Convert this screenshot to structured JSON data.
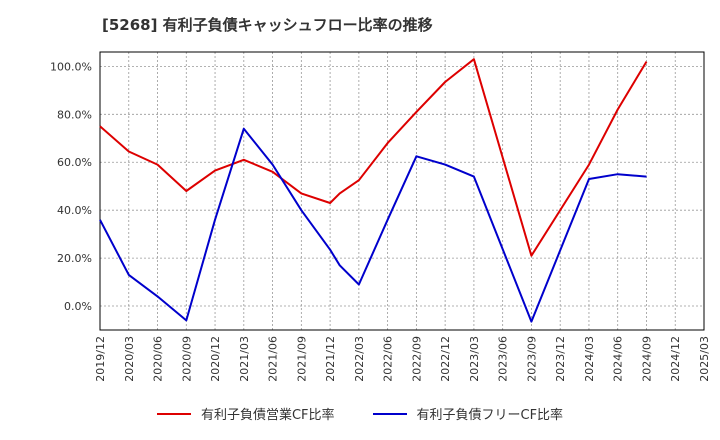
{
  "title": "[5268]  有利子負債キャッシュフロー比率の推移",
  "colors": {
    "series_0": "#dd0000",
    "series_1": "#0000cc",
    "grid": "#999999",
    "axis": "#000000"
  },
  "chart_data": {
    "type": "line",
    "title": "[5268]  有利子負債キャッシュフロー比率の推移",
    "xlabel": "",
    "ylabel": "",
    "categories": [
      "2019/12",
      "2020/03",
      "2020/06",
      "2020/09",
      "2020/12",
      "2021/03",
      "2021/06",
      "2021/09",
      "2021/12",
      "2022/03",
      "2022/06",
      "2022/09",
      "2022/12",
      "2023/03",
      "2023/06",
      "2023/09",
      "2023/12",
      "2024/03",
      "2024/06",
      "2024/09",
      "2024/12",
      "2025/03"
    ],
    "ylim": [
      -10,
      106
    ],
    "yticks": [
      0,
      20,
      40,
      60,
      80,
      100
    ],
    "ytick_labels": [
      "0.0%",
      "20.0%",
      "40.0%",
      "60.0%",
      "80.0%",
      "100.0%"
    ],
    "grid": true,
    "legend_position": "bottom",
    "series": [
      {
        "name": "有利子負債営業CF比率",
        "points": [
          {
            "x": "2019/12",
            "y": 75.0
          },
          {
            "x": "2020/03",
            "y": 64.5
          },
          {
            "x": "2020/06",
            "y": 59.0
          },
          {
            "x": "2020/09",
            "y": 48.0
          },
          {
            "x": "2020/12",
            "y": 56.5
          },
          {
            "x": "2021/03",
            "y": 61.0
          },
          {
            "x": "2021/06",
            "y": 56.0
          },
          {
            "x": "2021/09",
            "y": 47.0
          },
          {
            "x": "2021/12",
            "y": 43.0
          },
          {
            "x": "2022/01",
            "y": 47.0
          },
          {
            "x": "2022/03",
            "y": 52.5
          },
          {
            "x": "2022/06",
            "y": 68.0
          },
          {
            "x": "2022/09",
            "y": 81.0
          },
          {
            "x": "2022/12",
            "y": 93.5
          },
          {
            "x": "2023/03",
            "y": 103.0
          },
          {
            "x": "2023/09",
            "y": 21.0
          },
          {
            "x": "2024/03",
            "y": 59.0
          },
          {
            "x": "2024/06",
            "y": 82.0
          },
          {
            "x": "2024/09",
            "y": 102.0
          }
        ]
      },
      {
        "name": "有利子負債フリーCF比率",
        "points": [
          {
            "x": "2019/12",
            "y": 36.0
          },
          {
            "x": "2020/03",
            "y": 13.0
          },
          {
            "x": "2020/06",
            "y": 4.0
          },
          {
            "x": "2020/09",
            "y": -6.0
          },
          {
            "x": "2020/12",
            "y": 36.0
          },
          {
            "x": "2021/03",
            "y": 74.0
          },
          {
            "x": "2021/06",
            "y": 59.0
          },
          {
            "x": "2021/09",
            "y": 40.0
          },
          {
            "x": "2021/12",
            "y": 23.5
          },
          {
            "x": "2022/01",
            "y": 17.0
          },
          {
            "x": "2022/03",
            "y": 9.0
          },
          {
            "x": "2022/06",
            "y": 36.0
          },
          {
            "x": "2022/09",
            "y": 62.5
          },
          {
            "x": "2022/12",
            "y": 59.0
          },
          {
            "x": "2023/03",
            "y": 54.0
          },
          {
            "x": "2023/09",
            "y": -6.5
          },
          {
            "x": "2024/03",
            "y": 53.0
          },
          {
            "x": "2024/06",
            "y": 55.0
          },
          {
            "x": "2024/09",
            "y": 54.0
          }
        ]
      }
    ]
  }
}
